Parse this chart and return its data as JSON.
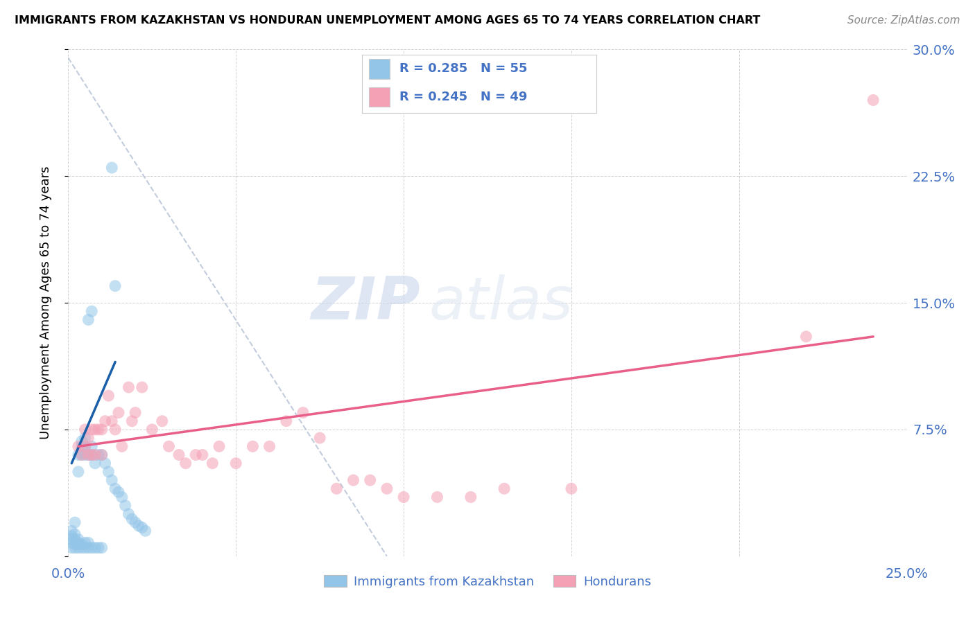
{
  "title": "IMMIGRANTS FROM KAZAKHSTAN VS HONDURAN UNEMPLOYMENT AMONG AGES 65 TO 74 YEARS CORRELATION CHART",
  "source": "Source: ZipAtlas.com",
  "ylabel_label": "Unemployment Among Ages 65 to 74 years",
  "legend_label1": "Immigrants from Kazakhstan",
  "legend_label2": "Hondurans",
  "R1": 0.285,
  "N1": 55,
  "R2": 0.245,
  "N2": 49,
  "xlim": [
    0.0,
    0.25
  ],
  "ylim": [
    0.0,
    0.3
  ],
  "xticks": [
    0.0,
    0.05,
    0.1,
    0.15,
    0.2,
    0.25
  ],
  "yticks": [
    0.0,
    0.075,
    0.15,
    0.225,
    0.3
  ],
  "xticklabels": [
    "0.0%",
    "",
    "",
    "",
    "",
    "25.0%"
  ],
  "yticklabels_right": [
    "",
    "7.5%",
    "15.0%",
    "22.5%",
    "30.0%"
  ],
  "color_blue": "#92c5e8",
  "color_pink": "#f4a0b5",
  "color_blue_line": "#1a5fa8",
  "color_pink_line": "#e8608a",
  "color_text": "#4472c4",
  "watermark_zip": "ZIP",
  "watermark_atlas": "atlas",
  "blue_scatter_x": [
    0.001,
    0.001,
    0.001,
    0.001,
    0.001,
    0.002,
    0.002,
    0.002,
    0.002,
    0.002,
    0.003,
    0.003,
    0.003,
    0.003,
    0.003,
    0.003,
    0.004,
    0.004,
    0.004,
    0.004,
    0.004,
    0.005,
    0.005,
    0.005,
    0.005,
    0.005,
    0.006,
    0.006,
    0.006,
    0.006,
    0.007,
    0.007,
    0.007,
    0.007,
    0.008,
    0.008,
    0.009,
    0.009,
    0.01,
    0.01,
    0.011,
    0.012,
    0.013,
    0.014,
    0.015,
    0.016,
    0.017,
    0.018,
    0.019,
    0.02,
    0.021,
    0.022,
    0.023,
    0.014,
    0.013
  ],
  "blue_scatter_y": [
    0.005,
    0.008,
    0.01,
    0.012,
    0.015,
    0.005,
    0.007,
    0.01,
    0.013,
    0.02,
    0.005,
    0.007,
    0.008,
    0.01,
    0.05,
    0.06,
    0.005,
    0.007,
    0.06,
    0.065,
    0.068,
    0.005,
    0.008,
    0.06,
    0.065,
    0.07,
    0.005,
    0.008,
    0.06,
    0.14,
    0.005,
    0.06,
    0.065,
    0.145,
    0.005,
    0.055,
    0.005,
    0.06,
    0.005,
    0.06,
    0.055,
    0.05,
    0.045,
    0.04,
    0.038,
    0.035,
    0.03,
    0.025,
    0.022,
    0.02,
    0.018,
    0.017,
    0.015,
    0.16,
    0.23
  ],
  "pink_scatter_x": [
    0.003,
    0.004,
    0.005,
    0.005,
    0.006,
    0.006,
    0.007,
    0.007,
    0.008,
    0.008,
    0.009,
    0.01,
    0.01,
    0.011,
    0.012,
    0.013,
    0.014,
    0.015,
    0.016,
    0.018,
    0.019,
    0.02,
    0.022,
    0.025,
    0.028,
    0.03,
    0.033,
    0.035,
    0.038,
    0.04,
    0.043,
    0.045,
    0.05,
    0.055,
    0.06,
    0.065,
    0.07,
    0.075,
    0.08,
    0.085,
    0.09,
    0.095,
    0.1,
    0.11,
    0.12,
    0.13,
    0.15,
    0.22,
    0.24
  ],
  "pink_scatter_y": [
    0.065,
    0.06,
    0.065,
    0.075,
    0.06,
    0.07,
    0.06,
    0.075,
    0.06,
    0.075,
    0.075,
    0.06,
    0.075,
    0.08,
    0.095,
    0.08,
    0.075,
    0.085,
    0.065,
    0.1,
    0.08,
    0.085,
    0.1,
    0.075,
    0.08,
    0.065,
    0.06,
    0.055,
    0.06,
    0.06,
    0.055,
    0.065,
    0.055,
    0.065,
    0.065,
    0.08,
    0.085,
    0.07,
    0.04,
    0.045,
    0.045,
    0.04,
    0.035,
    0.035,
    0.035,
    0.04,
    0.04,
    0.13,
    0.27
  ],
  "blue_trend_x": [
    0.001,
    0.014
  ],
  "blue_trend_y": [
    0.055,
    0.115
  ],
  "pink_trend_x": [
    0.003,
    0.24
  ],
  "pink_trend_y": [
    0.065,
    0.13
  ],
  "dashed_line_x": [
    0.0,
    0.095
  ],
  "dashed_line_y": [
    0.295,
    0.0
  ]
}
